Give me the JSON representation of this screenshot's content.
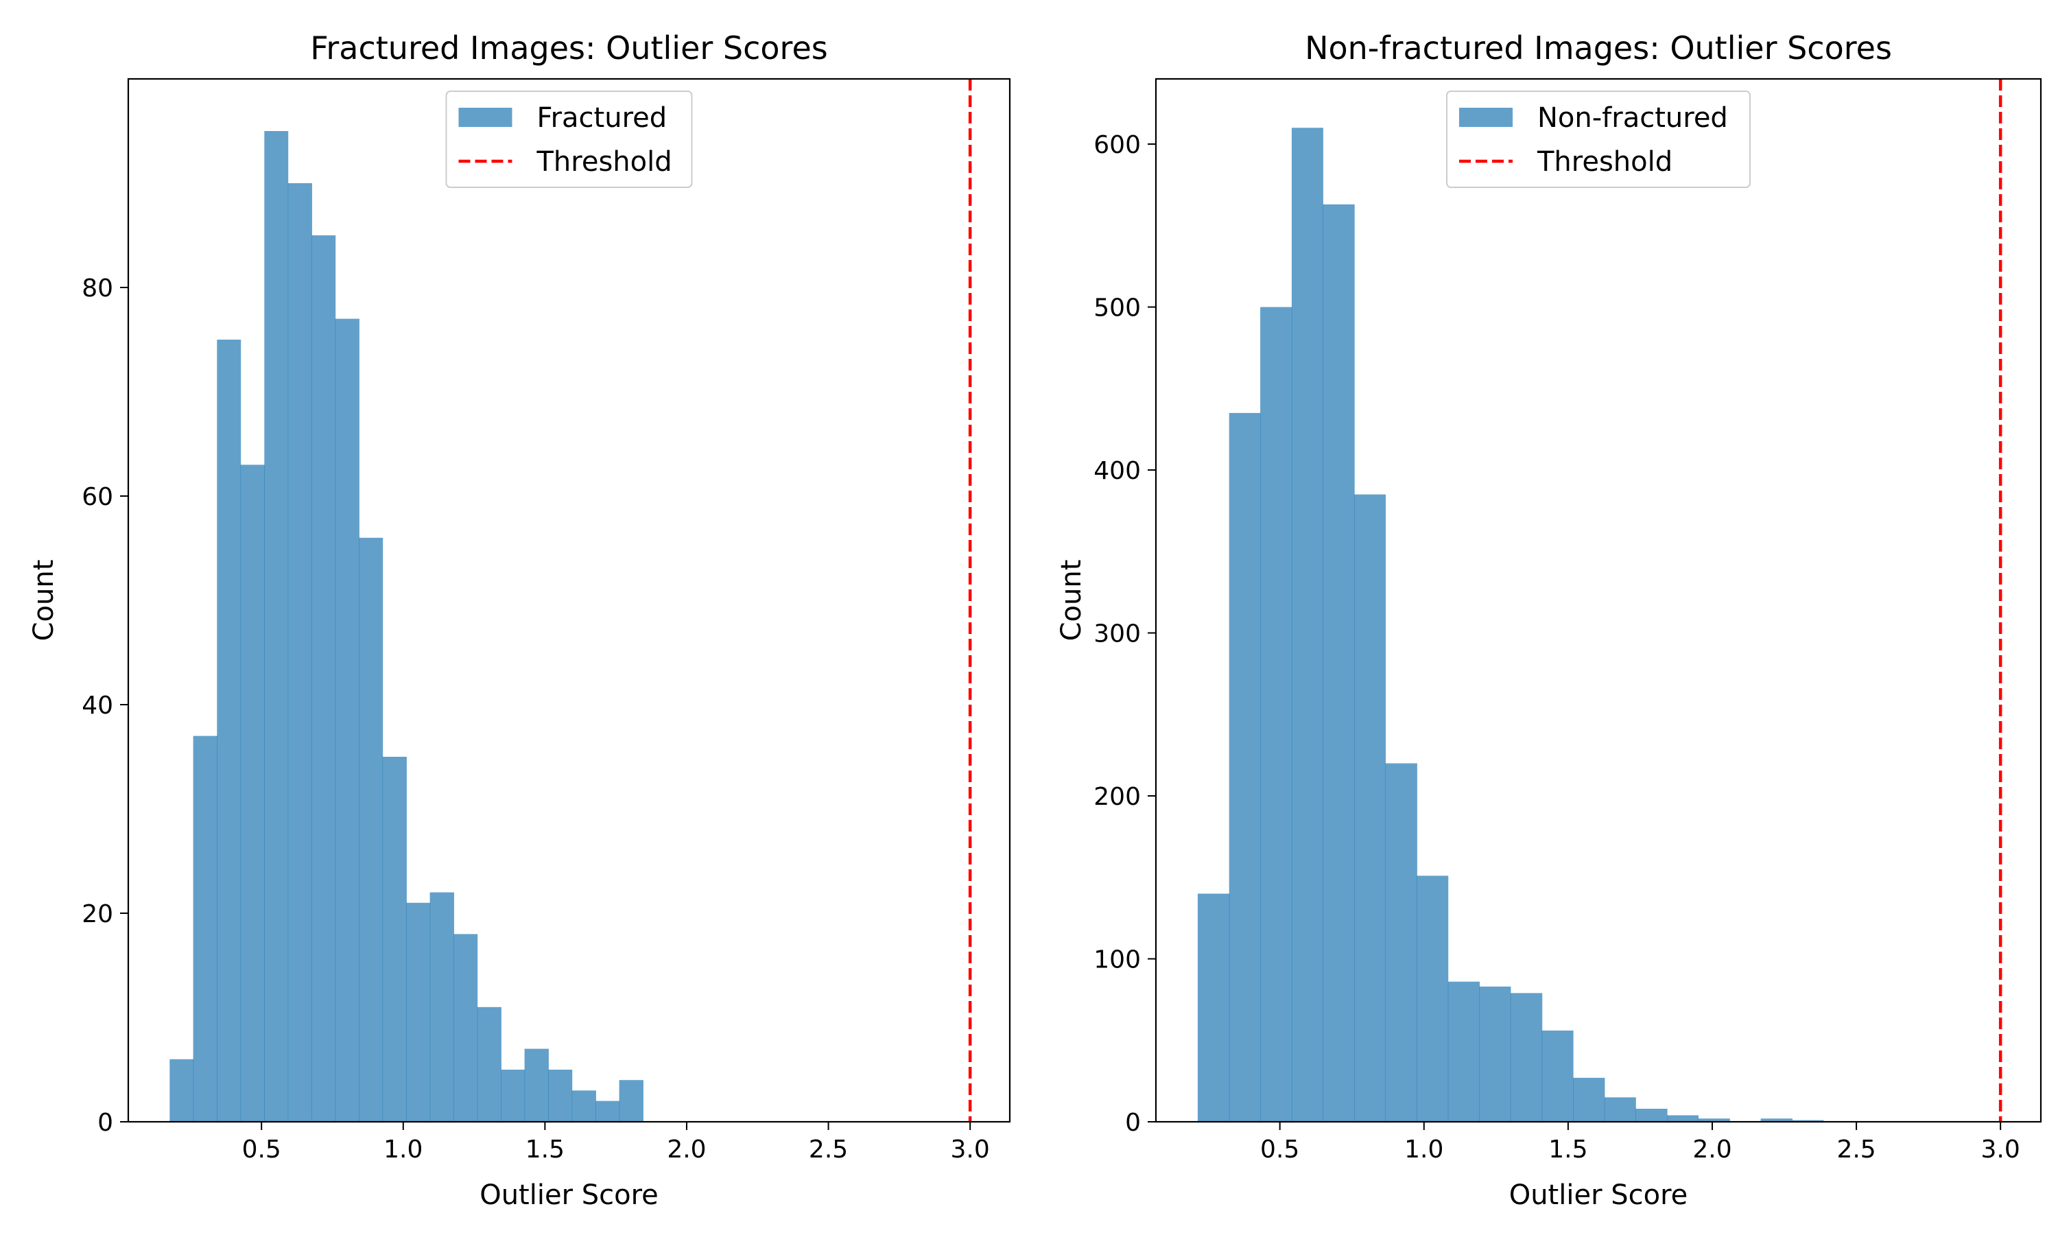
{
  "chart_data": [
    {
      "type": "bar",
      "title": "Fractured Images: Outlier Scores",
      "xlabel": "Outlier Score",
      "ylabel": "Count",
      "xlim": [
        0.03,
        3.14
      ],
      "ylim": [
        0,
        100
      ],
      "xticks": [
        0.5,
        1.0,
        1.5,
        2.0,
        2.5,
        3.0
      ],
      "xtick_labels": [
        "0.5",
        "1.0",
        "1.5",
        "2.0",
        "2.5",
        "3.0"
      ],
      "yticks": [
        0,
        20,
        40,
        60,
        80
      ],
      "ytick_labels": [
        "0",
        "20",
        "40",
        "60",
        "80"
      ],
      "bin_edges": [
        0.176,
        0.259,
        0.343,
        0.426,
        0.51,
        0.593,
        0.677,
        0.76,
        0.844,
        0.927,
        1.011,
        1.094,
        1.178,
        1.261,
        1.345,
        1.428,
        1.512,
        1.595,
        1.679,
        1.762,
        1.846
      ],
      "values": [
        6,
        37,
        75,
        63,
        95,
        90,
        85,
        77,
        56,
        35,
        21,
        22,
        18,
        11,
        5,
        7,
        5,
        3,
        2,
        4
      ],
      "legend": [
        "Fractured",
        "Threshold"
      ],
      "legend_position": "upper center",
      "threshold": 3.0,
      "bar_color": "#1f77b4",
      "bar_opacity": 0.7,
      "threshold_color": "#ff0000"
    },
    {
      "type": "bar",
      "title": "Non-fractured Images: Outlier Scores",
      "xlabel": "Outlier Score",
      "ylabel": "Count",
      "xlim": [
        0.07,
        3.14
      ],
      "ylim": [
        0,
        640
      ],
      "xticks": [
        0.5,
        1.0,
        1.5,
        2.0,
        2.5,
        3.0
      ],
      "xtick_labels": [
        "0.5",
        "1.0",
        "1.5",
        "2.0",
        "2.5",
        "3.0"
      ],
      "yticks": [
        0,
        100,
        200,
        300,
        400,
        500,
        600
      ],
      "ytick_labels": [
        "0",
        "100",
        "200",
        "300",
        "400",
        "500",
        "600"
      ],
      "bin_edges": [
        0.215,
        0.324,
        0.432,
        0.541,
        0.649,
        0.758,
        0.866,
        0.975,
        1.083,
        1.192,
        1.3,
        1.409,
        1.517,
        1.626,
        1.734,
        1.843,
        1.951,
        2.06,
        2.168,
        2.277,
        2.385
      ],
      "values": [
        140,
        435,
        500,
        610,
        563,
        385,
        220,
        151,
        86,
        83,
        79,
        56,
        27,
        15,
        8,
        4,
        2,
        0,
        2,
        1
      ],
      "legend": [
        "Non-fractured",
        "Threshold"
      ],
      "legend_position": "upper center",
      "threshold": 3.0,
      "bar_color": "#1f77b4",
      "bar_opacity": 0.7,
      "threshold_color": "#ff0000"
    }
  ]
}
